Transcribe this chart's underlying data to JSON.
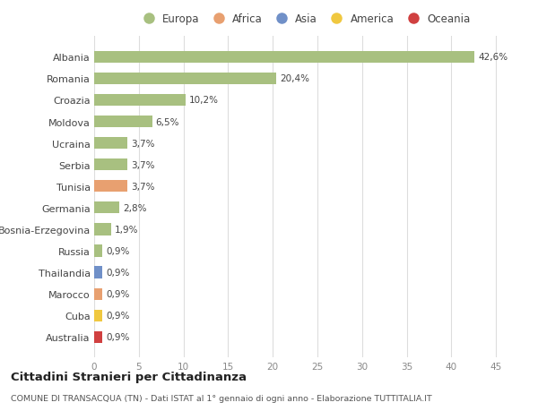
{
  "categories": [
    "Albania",
    "Romania",
    "Croazia",
    "Moldova",
    "Ucraina",
    "Serbia",
    "Tunisia",
    "Germania",
    "Bosnia-Erzegovina",
    "Russia",
    "Thailandia",
    "Marocco",
    "Cuba",
    "Australia"
  ],
  "values": [
    42.6,
    20.4,
    10.2,
    6.5,
    3.7,
    3.7,
    3.7,
    2.8,
    1.9,
    0.9,
    0.9,
    0.9,
    0.9,
    0.9
  ],
  "labels": [
    "42,6%",
    "20,4%",
    "10,2%",
    "6,5%",
    "3,7%",
    "3,7%",
    "3,7%",
    "2,8%",
    "1,9%",
    "0,9%",
    "0,9%",
    "0,9%",
    "0,9%",
    "0,9%"
  ],
  "bar_colors": [
    "#a8c080",
    "#a8c080",
    "#a8c080",
    "#a8c080",
    "#a8c080",
    "#a8c080",
    "#e8a070",
    "#a8c080",
    "#a8c080",
    "#a8c080",
    "#7090c8",
    "#e8a070",
    "#f0c840",
    "#d04040"
  ],
  "legend_labels": [
    "Europa",
    "Africa",
    "Asia",
    "America",
    "Oceania"
  ],
  "legend_colors": [
    "#a8c080",
    "#e8a070",
    "#7090c8",
    "#f0c840",
    "#d04040"
  ],
  "title": "Cittadini Stranieri per Cittadinanza",
  "subtitle": "COMUNE DI TRANSACQUA (TN) - Dati ISTAT al 1° gennaio di ogni anno - Elaborazione TUTTITALIA.IT",
  "xlim": [
    0,
    47
  ],
  "xticks": [
    0,
    5,
    10,
    15,
    20,
    25,
    30,
    35,
    40,
    45
  ],
  "bg_color": "#ffffff",
  "grid_color": "#dddddd",
  "bar_height": 0.55
}
